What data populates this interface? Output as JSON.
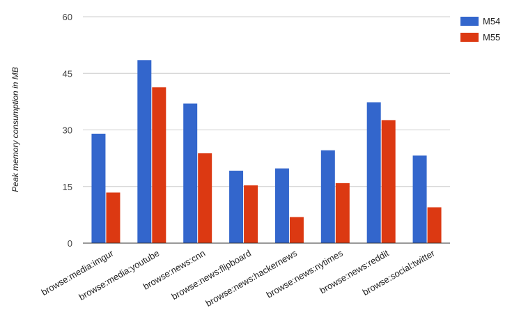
{
  "chart_data": {
    "type": "bar",
    "title": "",
    "xlabel": "",
    "ylabel": "Peak memory consumption in MB",
    "ylim": [
      0,
      60
    ],
    "yticks": [
      0,
      15,
      30,
      45,
      60
    ],
    "grid": true,
    "legend_position": "top-right",
    "categories": [
      "browse:media:imgur",
      "browse:media:youtube",
      "browse:news:cnn",
      "browse:news:flipboard",
      "browse:news:hackernews",
      "browse:news:nytimes",
      "browse:news:reddit",
      "browse:social:twitter"
    ],
    "series": [
      {
        "name": "M54",
        "color": "#3366cc",
        "values": [
          29.0,
          48.5,
          37.0,
          19.2,
          19.8,
          24.6,
          37.3,
          23.2
        ]
      },
      {
        "name": "M55",
        "color": "#dc3912",
        "values": [
          13.4,
          41.3,
          23.8,
          15.3,
          6.9,
          15.9,
          32.6,
          9.5
        ]
      }
    ]
  }
}
